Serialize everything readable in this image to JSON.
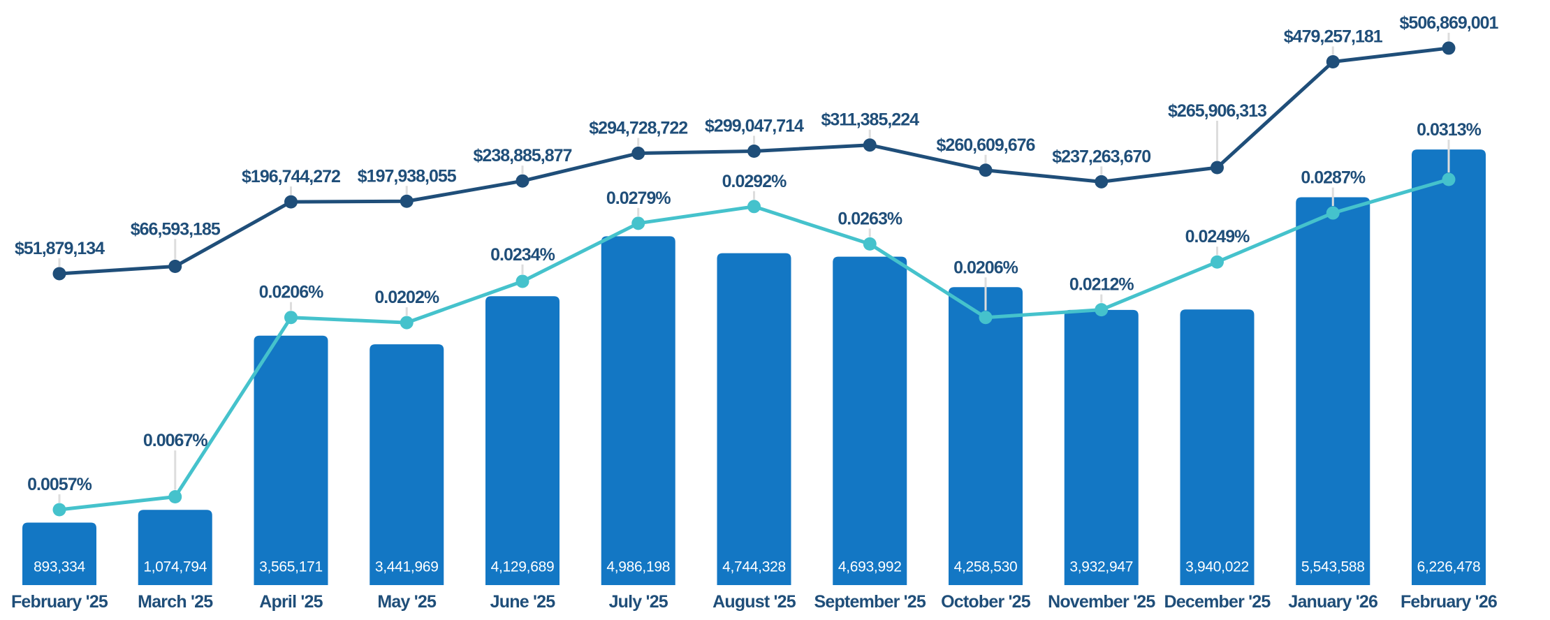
{
  "chart_data": {
    "type": "bar",
    "subtype": "bar-with-two-lines",
    "title": "",
    "xlabel": "",
    "ylabel": "",
    "grid": "off",
    "legend": "none",
    "background_color": "#FFFFFF",
    "label_leader_color": "#DDDDDD",
    "axis_label_color": "#1F4E79",
    "categories": [
      "February '25",
      "March '25",
      "April '25",
      "May '25",
      "June '25",
      "July '25",
      "August '25",
      "September '25",
      "October '25",
      "November '25",
      "December '25",
      "January '26",
      "February '26"
    ],
    "series": [
      {
        "id": "volume-bars",
        "name": "bar-series",
        "type": "bar",
        "color": "#1377C4",
        "label_color": "#FFFFFF",
        "ylim": [
          0,
          6500000
        ],
        "values": [
          893334,
          1074794,
          3565171,
          3441969,
          4129689,
          4986198,
          4744328,
          4693992,
          4258530,
          3932947,
          3940022,
          5543588,
          6226478
        ],
        "labels": [
          "893,334",
          "1,074,794",
          "3,565,171",
          "3,441,969",
          "4,129,689",
          "4,986,198",
          "4,744,328",
          "4,693,992",
          "4,258,530",
          "3,932,947",
          "3,940,022",
          "5,543,588",
          "6,226,478"
        ]
      },
      {
        "id": "dollar-line",
        "name": "dollar-value-line",
        "type": "line",
        "color": "#1F4E79",
        "label_color": "#1F4E79",
        "values": [
          51879134,
          66593185,
          196744272,
          197938055,
          238885877,
          294728722,
          299047714,
          311385224,
          260609676,
          237263670,
          265906313,
          479257181,
          506869001
        ],
        "labels": [
          "$51,879,134",
          "$66,593,185",
          "$196,744,272",
          "$197,938,055",
          "$238,885,877",
          "$294,728,722",
          "$299,047,714",
          "$311,385,224",
          "$260,609,676",
          "$237,263,670",
          "$265,906,313",
          "$479,257,181",
          "$506,869,001"
        ]
      },
      {
        "id": "percent-line",
        "name": "percent-value-line",
        "type": "line",
        "color": "#45C2CC",
        "label_color": "#1F4E79",
        "values": [
          0.0057,
          0.0067,
          0.0206,
          0.0202,
          0.0234,
          0.0279,
          0.0292,
          0.0263,
          0.0206,
          0.0212,
          0.0249,
          0.0287,
          0.0313
        ],
        "labels": [
          "0.0057%",
          "0.0067%",
          "0.0206%",
          "0.0202%",
          "0.0234%",
          "0.0279%",
          "0.0292%",
          "0.0263%",
          "0.0206%",
          "0.0212%",
          "0.0249%",
          "0.0287%",
          "0.0313%"
        ]
      }
    ]
  }
}
